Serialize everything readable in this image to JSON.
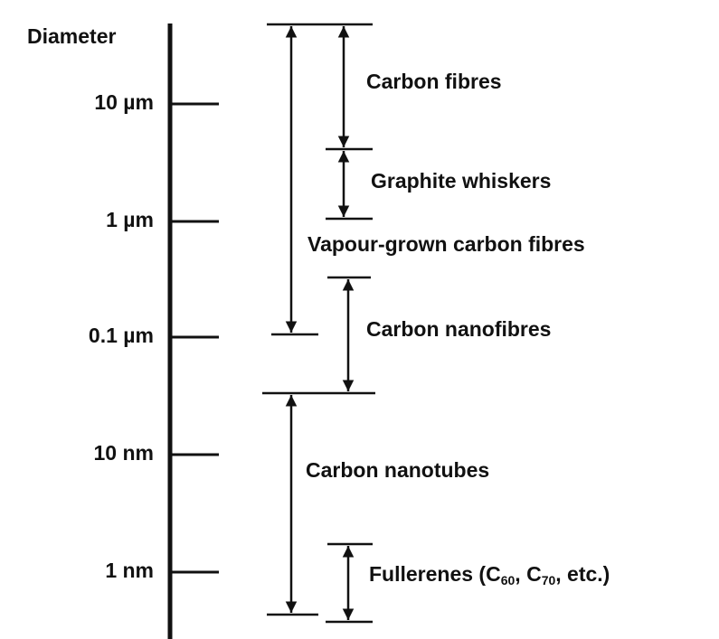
{
  "axis": {
    "label": "Diameter",
    "ticks": [
      "10 µm",
      "1 µm",
      "0.1 µm",
      "10 nm",
      "1 nm"
    ]
  },
  "ranges": [
    {
      "label": "Carbon fibres"
    },
    {
      "label": "Graphite whiskers"
    },
    {
      "label": "Vapour-grown carbon fibres"
    },
    {
      "label": "Carbon nanofibres"
    },
    {
      "label": "Carbon nanotubes"
    },
    {
      "label_parts": [
        "Fullerenes (C",
        "60",
        ", C",
        "70",
        ", etc.)"
      ]
    }
  ]
}
